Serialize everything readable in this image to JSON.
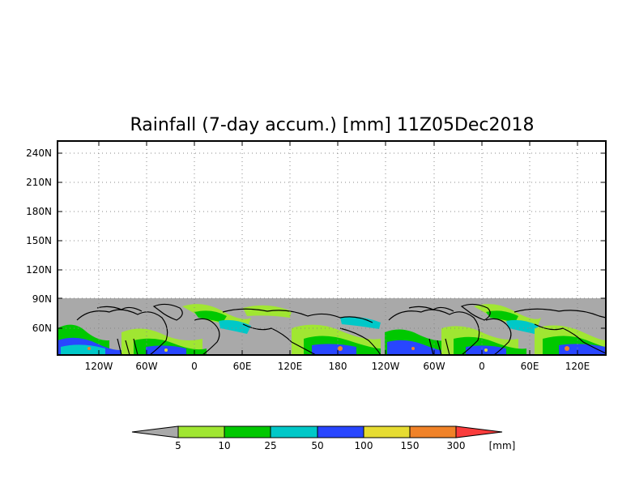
{
  "title": "Rainfall (7-day accum.) [mm] 11Z05Dec2018",
  "map": {
    "projection": "cylindrical",
    "longitude_labels": [
      "120W",
      "60W",
      "0",
      "60E",
      "120E",
      "180",
      "120W",
      "60W",
      "0",
      "60E",
      "120E"
    ],
    "latitude_labels": [
      "60N",
      "90N",
      "120N",
      "150N",
      "180N",
      "210N",
      "240N"
    ],
    "grid": "dotted",
    "land_color": "#a9a9a9",
    "coastline_color": "#000000",
    "border_color": "#000000"
  },
  "colorbar": {
    "unit_label": "[mm]",
    "tick_labels": [
      "5",
      "10",
      "25",
      "50",
      "100",
      "150",
      "300"
    ],
    "colors": [
      "#a9a9a9",
      "#a0e632",
      "#00c800",
      "#00c8c8",
      "#2846ff",
      "#e6dc32",
      "#f08228",
      "#fa3c3c"
    ]
  }
}
